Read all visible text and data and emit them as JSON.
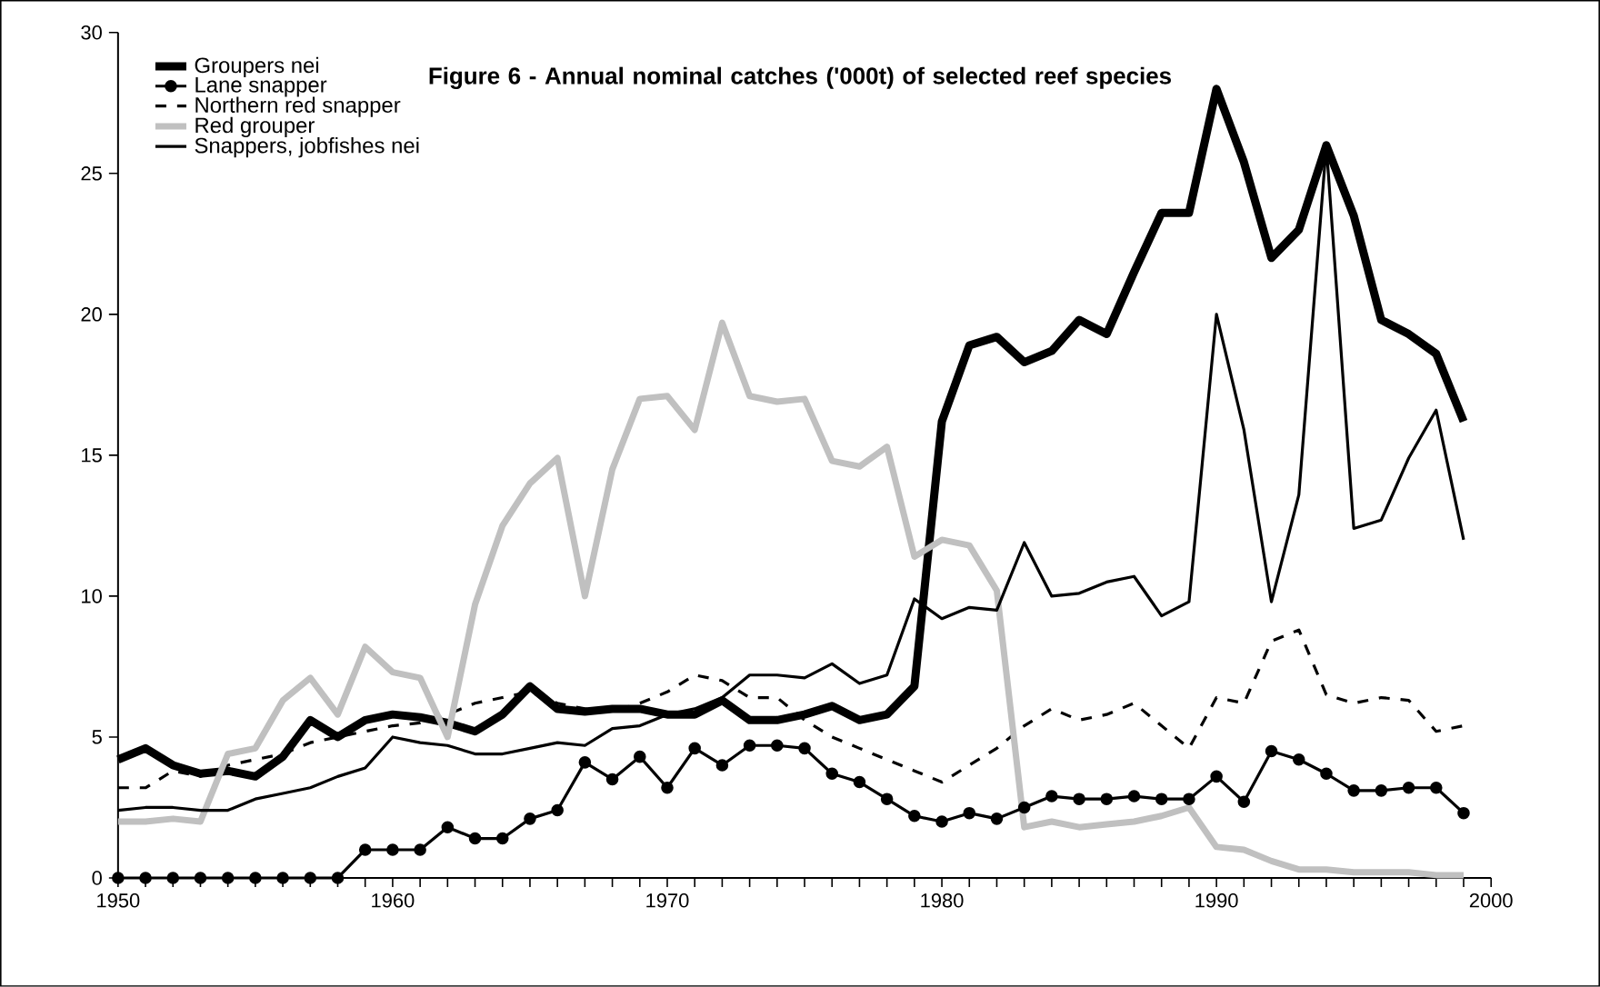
{
  "chart_data": {
    "type": "line",
    "title": "Figure 6 - Annual nominal catches ('000t) of selected reef species",
    "x": [
      1950,
      1951,
      1952,
      1953,
      1954,
      1955,
      1956,
      1957,
      1958,
      1959,
      1960,
      1961,
      1962,
      1963,
      1964,
      1965,
      1966,
      1967,
      1968,
      1969,
      1970,
      1971,
      1972,
      1973,
      1974,
      1975,
      1976,
      1977,
      1978,
      1979,
      1980,
      1981,
      1982,
      1983,
      1984,
      1985,
      1986,
      1987,
      1988,
      1989,
      1990,
      1991,
      1992,
      1993,
      1994,
      1995,
      1996,
      1997,
      1998,
      1999
    ],
    "series": [
      {
        "name": "Groupers nei",
        "color": "#000000",
        "line_style": "solid",
        "marker": "none",
        "values": [
          4.2,
          4.6,
          4.0,
          3.7,
          3.8,
          3.6,
          4.3,
          5.6,
          5.0,
          5.6,
          5.8,
          5.7,
          5.5,
          5.2,
          5.8,
          6.8,
          6.0,
          5.9,
          6.0,
          6.0,
          5.8,
          5.8,
          6.3,
          5.6,
          5.6,
          5.8,
          6.1,
          5.6,
          5.8,
          6.8,
          16.2,
          18.9,
          19.2,
          18.3,
          18.7,
          19.8,
          19.3,
          21.5,
          23.6,
          23.6,
          28.0,
          25.4,
          22.0,
          23.0,
          26.0,
          23.5,
          19.8,
          19.3,
          18.6,
          16.2
        ]
      },
      {
        "name": "Lane snapper",
        "color": "#000000",
        "line_style": "solid",
        "marker": "circle",
        "values": [
          0,
          0,
          0,
          0,
          0,
          0,
          0,
          0,
          0,
          1.0,
          1.0,
          1.0,
          1.8,
          1.4,
          1.4,
          2.1,
          2.4,
          4.1,
          3.5,
          4.3,
          3.2,
          4.6,
          4.0,
          4.7,
          4.7,
          4.6,
          3.7,
          3.4,
          2.8,
          2.2,
          2.0,
          2.3,
          2.1,
          2.5,
          2.9,
          2.8,
          2.8,
          2.9,
          2.8,
          2.8,
          3.6,
          2.7,
          4.5,
          4.2,
          3.7,
          3.1,
          3.1,
          3.2,
          3.2,
          2.3
        ]
      },
      {
        "name": "Northern red snapper",
        "color": "#000000",
        "line_style": "dashed",
        "marker": "none",
        "values": [
          3.2,
          3.2,
          3.8,
          3.6,
          4.0,
          4.2,
          4.4,
          4.8,
          5.0,
          5.2,
          5.4,
          5.5,
          5.8,
          6.2,
          6.4,
          6.6,
          6.2,
          6.0,
          5.9,
          6.2,
          6.6,
          7.2,
          7.0,
          6.4,
          6.4,
          5.6,
          5.0,
          4.6,
          4.2,
          3.8,
          3.4,
          4.0,
          4.6,
          5.4,
          6.0,
          5.6,
          5.8,
          6.2,
          5.4,
          4.6,
          6.4,
          6.2,
          8.4,
          8.8,
          6.5,
          6.2,
          6.4,
          6.3,
          5.2,
          5.4
        ]
      },
      {
        "name": "Red grouper",
        "color": "#c0c0c0",
        "line_style": "solid",
        "marker": "none",
        "values": [
          2.0,
          2.0,
          2.1,
          2.0,
          4.4,
          4.6,
          6.3,
          7.1,
          5.8,
          8.2,
          7.3,
          7.1,
          5.0,
          9.7,
          12.5,
          14.0,
          14.9,
          10.0,
          14.5,
          17.0,
          17.1,
          15.9,
          19.7,
          17.1,
          16.9,
          17.0,
          14.8,
          14.6,
          15.3,
          11.4,
          12.0,
          11.8,
          10.2,
          1.8,
          2.0,
          1.8,
          1.9,
          2.0,
          2.2,
          2.5,
          1.1,
          1.0,
          0.6,
          0.3,
          0.3,
          0.2,
          0.2,
          0.2,
          0.1,
          0.1
        ]
      },
      {
        "name": "Snappers, jobfishes nei",
        "color": "#000000",
        "line_style": "solid",
        "marker": "none",
        "values": [
          2.4,
          2.5,
          2.5,
          2.4,
          2.4,
          2.8,
          3.0,
          3.2,
          3.6,
          3.9,
          5.0,
          4.8,
          4.7,
          4.4,
          4.4,
          4.6,
          4.8,
          4.7,
          5.3,
          5.4,
          5.8,
          6.0,
          6.4,
          7.2,
          7.2,
          7.1,
          7.6,
          6.9,
          7.2,
          9.9,
          9.2,
          9.6,
          9.5,
          11.9,
          10.0,
          10.1,
          10.5,
          10.7,
          9.3,
          9.8,
          20.0,
          15.9,
          9.8,
          13.6,
          26.0,
          12.4,
          12.7,
          14.9,
          16.6,
          12.0
        ]
      }
    ],
    "xlim": [
      1950,
      2000
    ],
    "xticks": [
      1950,
      1960,
      1970,
      1980,
      1990,
      2000
    ],
    "ylim": [
      0,
      30
    ],
    "yticks": [
      0,
      5,
      10,
      15,
      20,
      25,
      30
    ],
    "legend": "top left",
    "grid": false
  }
}
